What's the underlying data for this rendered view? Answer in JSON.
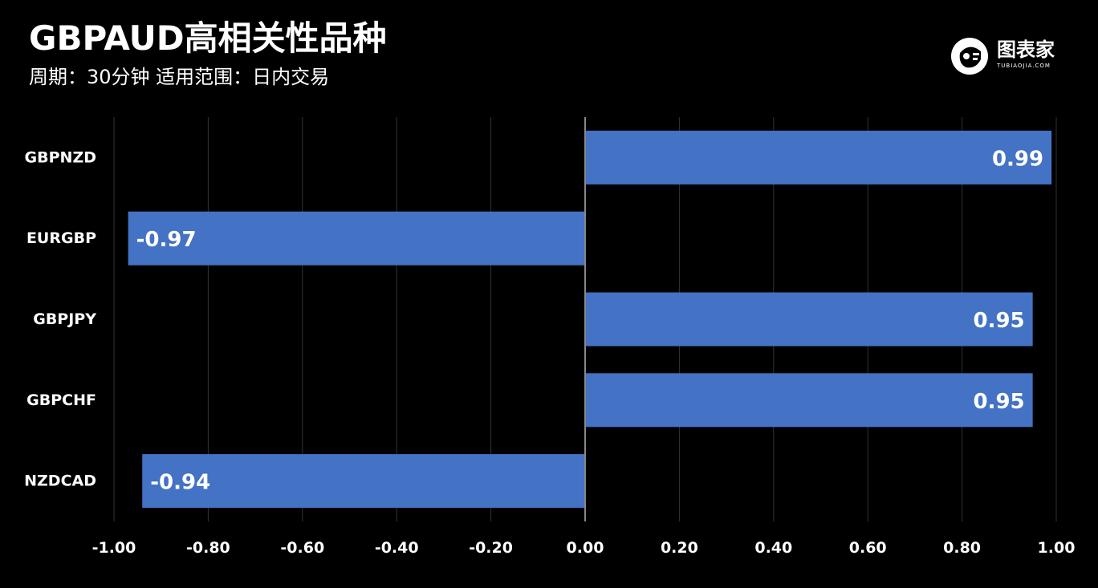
{
  "header": {
    "title": "GBPAUD高相关性品种",
    "subtitle": "周期：30分钟  适用范围：日内交易"
  },
  "logo": {
    "icon": "robot-head-icon",
    "text": "图表家",
    "subtext": "TUBIAOJIA.COM"
  },
  "colors": {
    "background": "#000000",
    "bar": "#4472c4",
    "grid": "#333333",
    "zero_line": "#888888",
    "text": "#ffffff"
  },
  "chart_data": {
    "type": "bar",
    "orientation": "horizontal",
    "categories": [
      "GBPNZD",
      "EURGBP",
      "GBPJPY",
      "GBPCHF",
      "NZDCAD"
    ],
    "values": [
      0.99,
      -0.97,
      0.95,
      0.95,
      -0.94
    ],
    "value_labels": [
      "0.99",
      "-0.97",
      "0.95",
      "0.95",
      "-0.94"
    ],
    "xlim": [
      -1.0,
      1.0
    ],
    "x_ticks": [
      -1.0,
      -0.8,
      -0.6,
      -0.4,
      -0.2,
      0.0,
      0.2,
      0.4,
      0.6,
      0.8,
      1.0
    ],
    "x_tick_labels": [
      "-1.00",
      "-0.80",
      "-0.60",
      "-0.40",
      "-0.20",
      "0.00",
      "0.20",
      "0.40",
      "0.60",
      "0.80",
      "1.00"
    ],
    "grid": "vertical",
    "legend": "none"
  }
}
